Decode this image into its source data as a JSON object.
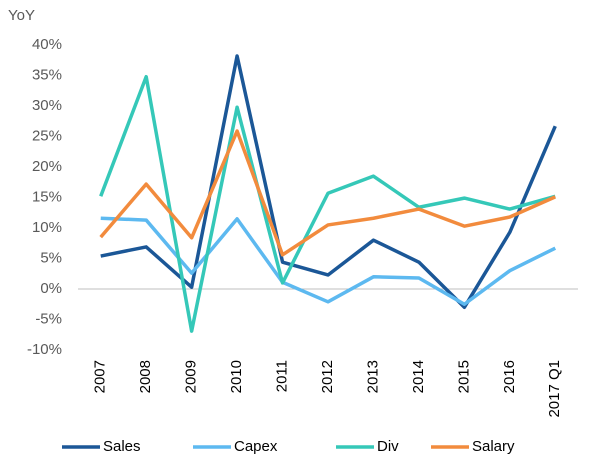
{
  "chart_data": {
    "type": "line",
    "y_axis_label": "YoY",
    "categories": [
      "2007",
      "2008",
      "2009",
      "2010",
      "2011",
      "2012",
      "2013",
      "2014",
      "2015",
      "2016",
      "2017 Q1"
    ],
    "series": [
      {
        "name": "Sales",
        "color": "#1b5797",
        "values": [
          5.4,
          6.9,
          0.3,
          38.2,
          4.4,
          2.3,
          8,
          4.4,
          -3,
          9.3,
          26.7
        ]
      },
      {
        "name": "Capex",
        "color": "#5db9f0",
        "values": [
          11.6,
          11.3,
          2.6,
          11.5,
          1.1,
          -2.1,
          2,
          1.8,
          -2.5,
          3,
          6.7
        ]
      },
      {
        "name": "Div",
        "color": "#35c8b8",
        "values": [
          15.2,
          34.8,
          -6.9,
          29.8,
          1,
          15.7,
          18.5,
          13.4,
          14.9,
          13.1,
          15.2
        ]
      },
      {
        "name": "Salary",
        "color": "#f28b3d",
        "values": [
          8.5,
          17.2,
          8.4,
          25.9,
          5.6,
          10.5,
          11.6,
          13.1,
          10.3,
          11.8,
          15.1
        ]
      }
    ],
    "ylim": [
      -10,
      40
    ],
    "yticks": [
      {
        "value": -10,
        "label": "-10%"
      },
      {
        "value": -5,
        "label": "-5%"
      },
      {
        "value": 0,
        "label": "0%"
      },
      {
        "value": 5,
        "label": "5%"
      },
      {
        "value": 10,
        "label": "10%"
      },
      {
        "value": 15,
        "label": "15%"
      },
      {
        "value": 20,
        "label": "20%"
      },
      {
        "value": 25,
        "label": "25%"
      },
      {
        "value": 30,
        "label": "30%"
      },
      {
        "value": 35,
        "label": "35%"
      },
      {
        "value": 40,
        "label": "40%"
      }
    ],
    "grid": false,
    "legend": "bottom"
  }
}
